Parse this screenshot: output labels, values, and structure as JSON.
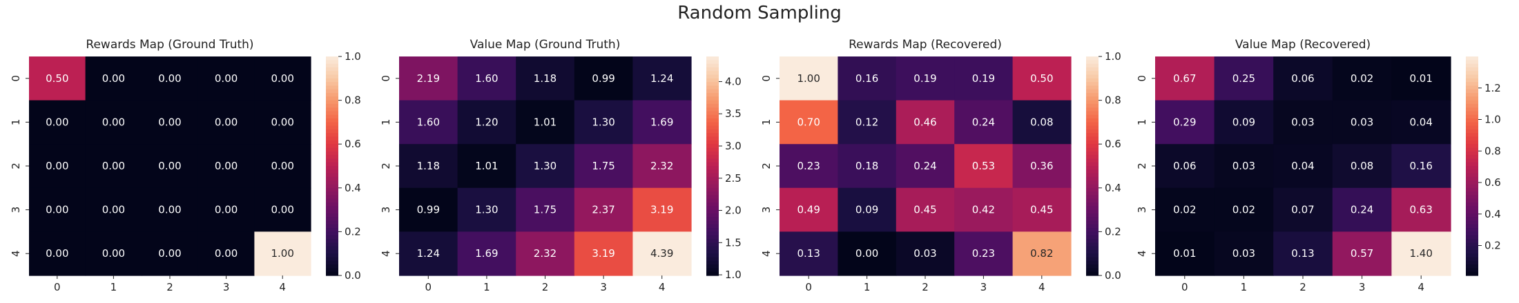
{
  "suptitle": "Random Sampling",
  "chart_data": [
    {
      "type": "heatmap",
      "title": "Rewards Map (Ground Truth)",
      "x": [
        "0",
        "1",
        "2",
        "3",
        "4"
      ],
      "y": [
        "0",
        "1",
        "2",
        "3",
        "4"
      ],
      "values": [
        [
          0.5,
          0.0,
          0.0,
          0.0,
          0.0
        ],
        [
          0.0,
          0.0,
          0.0,
          0.0,
          0.0
        ],
        [
          0.0,
          0.0,
          0.0,
          0.0,
          0.0
        ],
        [
          0.0,
          0.0,
          0.0,
          0.0,
          0.0
        ],
        [
          0.0,
          0.0,
          0.0,
          0.0,
          1.0
        ]
      ],
      "colorbar": {
        "min": 0.0,
        "max": 1.0,
        "ticks": [
          0.0,
          0.2,
          0.4,
          0.6,
          0.8,
          1.0
        ],
        "tick_labels": [
          "0.0",
          "0.2",
          "0.4",
          "0.6",
          "0.8",
          "1.0"
        ]
      },
      "colormap": "rocket"
    },
    {
      "type": "heatmap",
      "title": "Value Map (Ground Truth)",
      "x": [
        "0",
        "1",
        "2",
        "3",
        "4"
      ],
      "y": [
        "0",
        "1",
        "2",
        "3",
        "4"
      ],
      "values": [
        [
          2.19,
          1.6,
          1.18,
          0.99,
          1.24
        ],
        [
          1.6,
          1.2,
          1.01,
          1.3,
          1.69
        ],
        [
          1.18,
          1.01,
          1.3,
          1.75,
          2.32
        ],
        [
          0.99,
          1.3,
          1.75,
          2.37,
          3.19
        ],
        [
          1.24,
          1.69,
          2.32,
          3.19,
          4.39
        ]
      ],
      "colorbar": {
        "min": 0.99,
        "max": 4.39,
        "ticks": [
          1.0,
          1.5,
          2.0,
          2.5,
          3.0,
          3.5,
          4.0
        ],
        "tick_labels": [
          "1.0",
          "1.5",
          "2.0",
          "2.5",
          "3.0",
          "3.5",
          "4.0"
        ]
      },
      "colormap": "rocket"
    },
    {
      "type": "heatmap",
      "title": "Rewards Map (Recovered)",
      "x": [
        "0",
        "1",
        "2",
        "3",
        "4"
      ],
      "y": [
        "0",
        "1",
        "2",
        "3",
        "4"
      ],
      "values": [
        [
          1.0,
          0.16,
          0.19,
          0.19,
          0.5
        ],
        [
          0.7,
          0.12,
          0.46,
          0.24,
          0.08
        ],
        [
          0.23,
          0.18,
          0.24,
          0.53,
          0.36
        ],
        [
          0.49,
          0.09,
          0.45,
          0.42,
          0.45
        ],
        [
          0.13,
          0.0,
          0.03,
          0.23,
          0.82
        ]
      ],
      "colorbar": {
        "min": 0.0,
        "max": 1.0,
        "ticks": [
          0.0,
          0.2,
          0.4,
          0.6,
          0.8,
          1.0
        ],
        "tick_labels": [
          "0.0",
          "0.2",
          "0.4",
          "0.6",
          "0.8",
          "1.0"
        ]
      },
      "colormap": "rocket"
    },
    {
      "type": "heatmap",
      "title": "Value Map (Recovered)",
      "x": [
        "0",
        "1",
        "2",
        "3",
        "4"
      ],
      "y": [
        "0",
        "1",
        "2",
        "3",
        "4"
      ],
      "values": [
        [
          0.67,
          0.25,
          0.06,
          0.02,
          0.01
        ],
        [
          0.29,
          0.09,
          0.03,
          0.03,
          0.04
        ],
        [
          0.06,
          0.03,
          0.04,
          0.08,
          0.16
        ],
        [
          0.02,
          0.02,
          0.07,
          0.24,
          0.63
        ],
        [
          0.01,
          0.03,
          0.13,
          0.57,
          1.4
        ]
      ],
      "colorbar": {
        "min": 0.01,
        "max": 1.4,
        "ticks": [
          0.2,
          0.4,
          0.6,
          0.8,
          1.0,
          1.2
        ],
        "tick_labels": [
          "0.2",
          "0.4",
          "0.6",
          "0.8",
          "1.0",
          "1.2"
        ]
      },
      "colormap": "rocket"
    }
  ]
}
